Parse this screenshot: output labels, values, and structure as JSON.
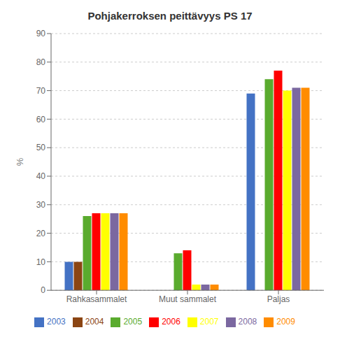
{
  "chart_data": {
    "type": "bar",
    "title": "Pohjakerroksen peittävyys PS 17",
    "ylabel": "%",
    "categories": [
      "Rahkasammalet",
      "Muut sammalet",
      "Paljas"
    ],
    "series": [
      {
        "name": "2003",
        "color": "#4472C4",
        "values": [
          10,
          0,
          69
        ]
      },
      {
        "name": "2004",
        "color": "#8B4513",
        "values": [
          10,
          0,
          0
        ]
      },
      {
        "name": "2005",
        "color": "#5AAB2E",
        "values": [
          26,
          13,
          74
        ]
      },
      {
        "name": "2006",
        "color": "#FF0000",
        "values": [
          27,
          14,
          77
        ]
      },
      {
        "name": "2007",
        "color": "#FFFF00",
        "values": [
          27,
          2,
          70
        ]
      },
      {
        "name": "2008",
        "color": "#7B68A0",
        "values": [
          27,
          2,
          71
        ]
      },
      {
        "name": "2009",
        "color": "#FF8C00",
        "values": [
          27,
          2,
          71
        ]
      }
    ],
    "ylim": [
      0,
      90
    ],
    "yticks": [
      0,
      10,
      20,
      30,
      40,
      50,
      60,
      70,
      80,
      90
    ],
    "grid": true,
    "legend": "bottom"
  }
}
